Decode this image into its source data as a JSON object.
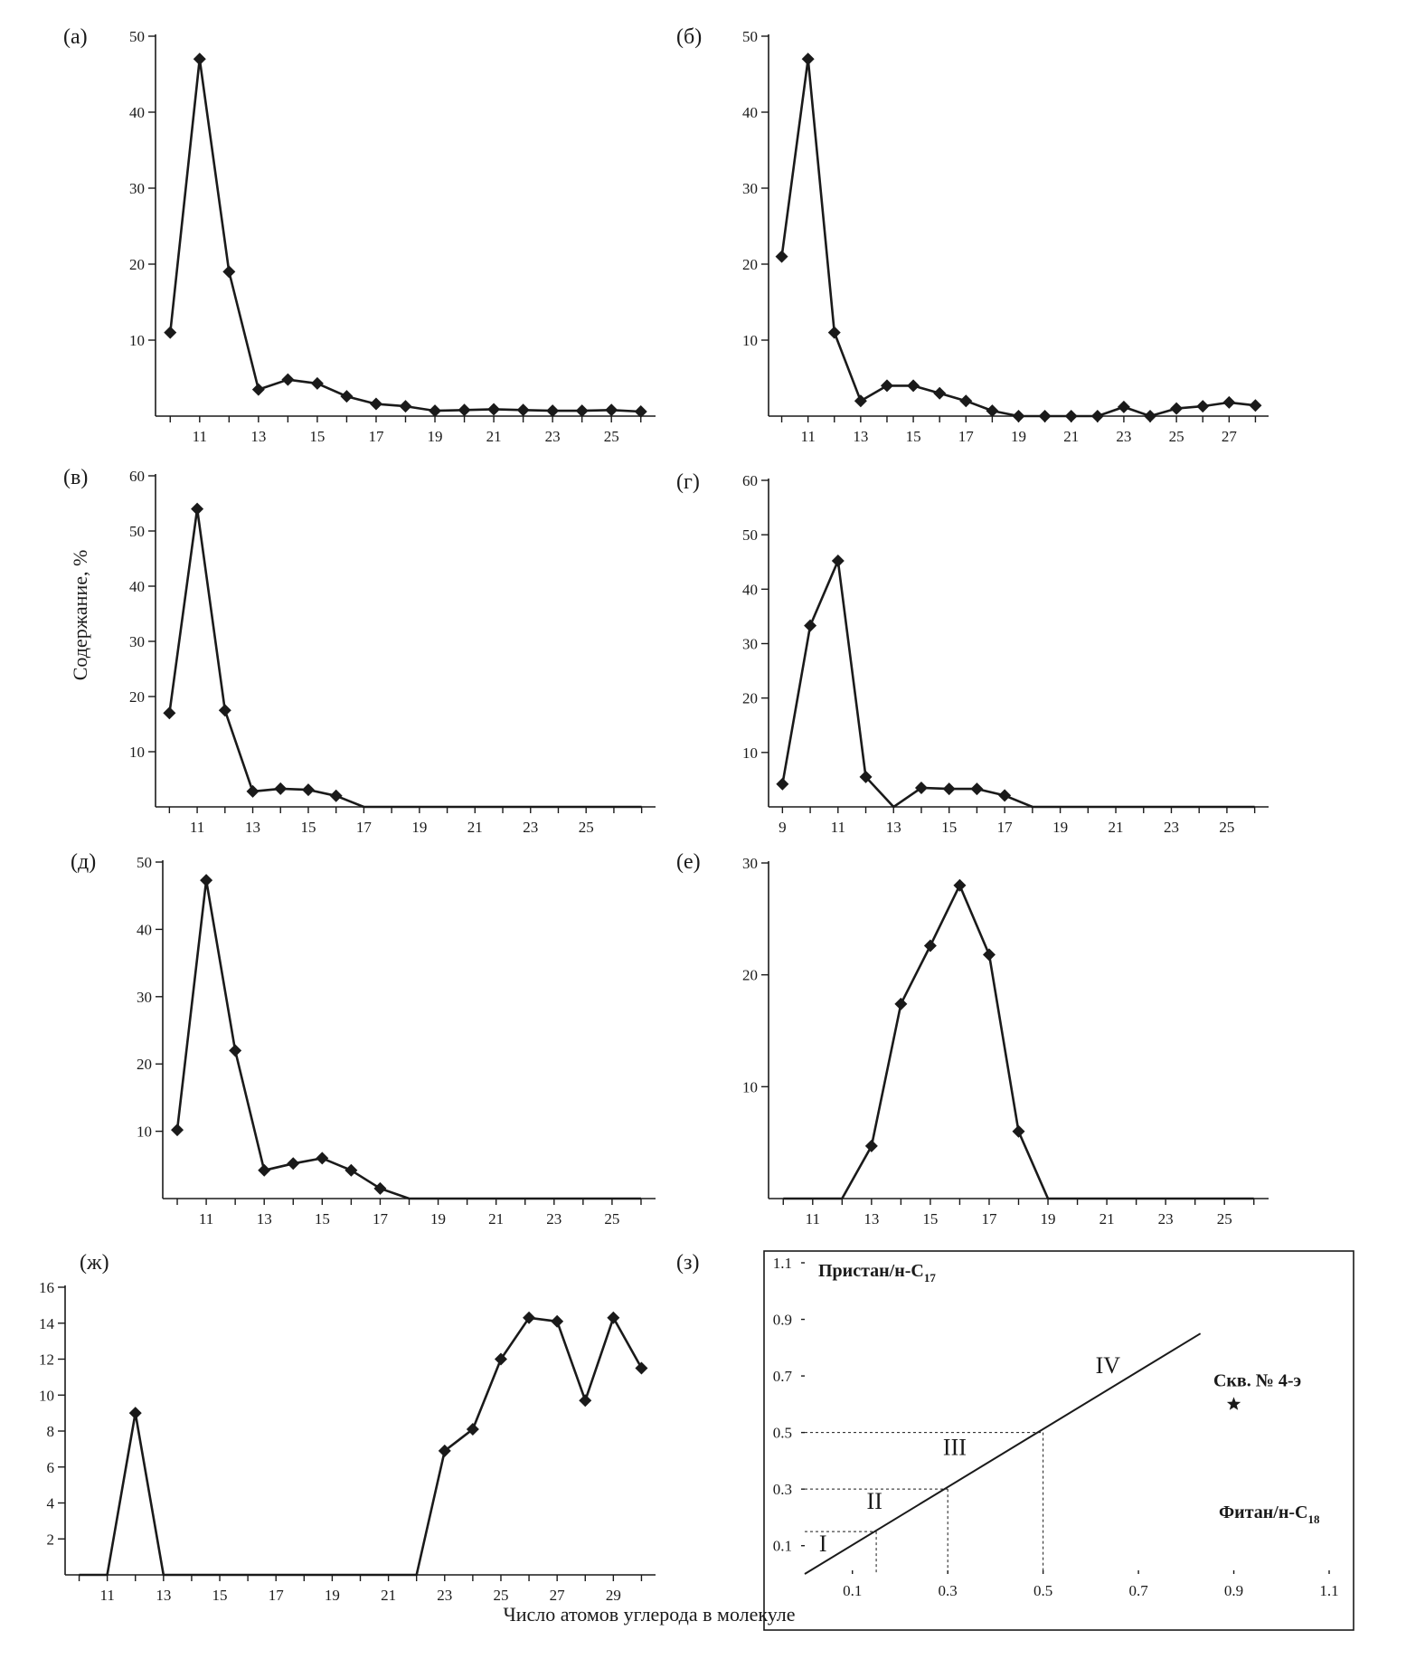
{
  "figure": {
    "ylabel": "Содержание, %",
    "xlabel": "Число атомов углерода в молекуле"
  },
  "chart_data": [
    {
      "id": "a",
      "panel_label": "(а)",
      "type": "line",
      "ylim": [
        0,
        50
      ],
      "yticks": [
        10,
        20,
        30,
        40,
        50
      ],
      "xlim": [
        9.5,
        26.5
      ],
      "xticks": [
        10,
        11,
        12,
        13,
        14,
        15,
        16,
        17,
        18,
        19,
        20,
        21,
        22,
        23,
        24,
        25,
        26
      ],
      "xtick_labels": [
        11,
        13,
        15,
        17,
        19,
        21,
        23,
        25
      ],
      "x": [
        10,
        11,
        12,
        13,
        14,
        15,
        16,
        17,
        18,
        19,
        20,
        21,
        22,
        23,
        24,
        25,
        26
      ],
      "y": [
        11,
        47,
        19,
        3.5,
        4.8,
        4.3,
        2.6,
        1.6,
        1.3,
        0.7,
        0.8,
        0.9,
        0.8,
        0.7,
        0.7,
        0.8,
        0.6
      ]
    },
    {
      "id": "b",
      "panel_label": "(б)",
      "type": "line",
      "ylim": [
        0,
        50
      ],
      "yticks": [
        10,
        20,
        30,
        40,
        50
      ],
      "xlim": [
        9.5,
        28.5
      ],
      "xticks": [
        10,
        11,
        12,
        13,
        14,
        15,
        16,
        17,
        18,
        19,
        20,
        21,
        22,
        23,
        24,
        25,
        26,
        27,
        28
      ],
      "xtick_labels": [
        11,
        13,
        15,
        17,
        19,
        21,
        23,
        25,
        27
      ],
      "x": [
        10,
        11,
        12,
        13,
        14,
        15,
        16,
        17,
        18,
        19,
        20,
        21,
        22,
        23,
        24,
        25,
        26,
        27,
        28
      ],
      "y": [
        21,
        47,
        11,
        2,
        4,
        4,
        3,
        2,
        0.7,
        0,
        0,
        0,
        0,
        1.2,
        0,
        1,
        1.3,
        1.8,
        1.4
      ]
    },
    {
      "id": "v",
      "panel_label": "(в)",
      "type": "line",
      "ylim": [
        0,
        60
      ],
      "yticks": [
        10,
        20,
        30,
        40,
        50,
        60
      ],
      "xlim": [
        9.5,
        27.5
      ],
      "xticks": [
        10,
        11,
        12,
        13,
        14,
        15,
        16,
        17,
        18,
        19,
        20,
        21,
        22,
        23,
        24,
        25,
        26,
        27
      ],
      "xtick_labels": [
        11,
        13,
        15,
        17,
        19,
        21,
        23,
        25
      ],
      "x": [
        10,
        11,
        12,
        13,
        14,
        15,
        16,
        17,
        18,
        19,
        20,
        21,
        22,
        23,
        24,
        25,
        26,
        27
      ],
      "y": [
        17,
        54,
        17.5,
        2.8,
        3.3,
        3.1,
        2,
        0,
        0,
        0,
        0,
        0,
        0,
        0,
        0,
        0,
        0,
        0
      ],
      "markers_until_index": 6
    },
    {
      "id": "g",
      "panel_label": "(г)",
      "type": "line",
      "ylim": [
        0,
        60
      ],
      "yticks": [
        10,
        20,
        30,
        40,
        50,
        60
      ],
      "xlim": [
        8.5,
        26.5
      ],
      "xticks": [
        9,
        10,
        11,
        12,
        13,
        14,
        15,
        16,
        17,
        18,
        19,
        20,
        21,
        22,
        23,
        24,
        25,
        26
      ],
      "xtick_labels": [
        9,
        11,
        13,
        15,
        17,
        19,
        21,
        23,
        25
      ],
      "x": [
        9,
        10,
        11,
        12,
        13,
        14,
        15,
        16,
        17,
        18,
        19,
        20,
        21,
        22,
        23,
        24,
        25,
        26
      ],
      "y": [
        4.2,
        33.3,
        45.2,
        5.5,
        0,
        3.5,
        3.3,
        3.3,
        2.1,
        0,
        0,
        0,
        0,
        0,
        0,
        0,
        0,
        0
      ],
      "markers_at_indices": [
        0,
        1,
        2,
        3,
        5,
        6,
        7,
        8
      ]
    },
    {
      "id": "d",
      "panel_label": "(д)",
      "type": "line",
      "ylim": [
        0,
        50
      ],
      "yticks": [
        10,
        20,
        30,
        40,
        50
      ],
      "xlim": [
        9.5,
        26.5
      ],
      "xticks": [
        10,
        11,
        12,
        13,
        14,
        15,
        16,
        17,
        18,
        19,
        20,
        21,
        22,
        23,
        24,
        25,
        26
      ],
      "xtick_labels": [
        11,
        13,
        15,
        17,
        19,
        21,
        23,
        25
      ],
      "x": [
        10,
        11,
        12,
        13,
        14,
        15,
        16,
        17,
        18,
        19,
        20,
        21,
        22,
        23,
        24,
        25,
        26
      ],
      "y": [
        10.2,
        47.3,
        22,
        4.2,
        5.2,
        6,
        4.2,
        1.5,
        0,
        0,
        0,
        0,
        0,
        0,
        0,
        0,
        0
      ],
      "markers_until_index": 7
    },
    {
      "id": "e",
      "panel_label": "(е)",
      "type": "line",
      "ylim": [
        0,
        30
      ],
      "yticks": [
        10,
        20,
        30
      ],
      "xlim": [
        9.5,
        26.5
      ],
      "xticks": [
        10,
        11,
        12,
        13,
        14,
        15,
        16,
        17,
        18,
        19,
        20,
        21,
        22,
        23,
        24,
        25,
        26
      ],
      "xtick_labels": [
        11,
        13,
        15,
        17,
        19,
        21,
        23,
        25
      ],
      "x": [
        10,
        11,
        12,
        13,
        14,
        15,
        16,
        17,
        18,
        19,
        20,
        21,
        22,
        23,
        24,
        25,
        26
      ],
      "y": [
        0,
        0,
        0,
        4.7,
        17.4,
        22.6,
        28,
        21.8,
        6,
        0,
        0,
        0,
        0,
        0,
        0,
        0,
        0
      ],
      "markers_at_indices": [
        3,
        4,
        5,
        6,
        7,
        8
      ]
    },
    {
      "id": "zh",
      "panel_label": "(ж)",
      "type": "line",
      "ylim": [
        0,
        16
      ],
      "yticks": [
        2,
        4,
        6,
        8,
        10,
        12,
        14,
        16
      ],
      "xlim": [
        9.5,
        30.5
      ],
      "xticks": [
        10,
        11,
        12,
        13,
        14,
        15,
        16,
        17,
        18,
        19,
        20,
        21,
        22,
        23,
        24,
        25,
        26,
        27,
        28,
        29,
        30
      ],
      "xtick_labels": [
        11,
        13,
        15,
        17,
        19,
        21,
        23,
        25,
        27,
        29
      ],
      "x": [
        10,
        11,
        12,
        13,
        14,
        15,
        16,
        17,
        18,
        19,
        20,
        21,
        22,
        23,
        24,
        25,
        26,
        27,
        28,
        29,
        30
      ],
      "y": [
        0,
        0,
        9,
        0,
        0,
        0,
        0,
        0,
        0,
        0,
        0,
        0,
        0,
        6.9,
        8.1,
        12,
        14.3,
        14.1,
        9.7,
        14.3,
        11.5
      ],
      "markers_at_indices": [
        2,
        13,
        14,
        15,
        16,
        17,
        18,
        19,
        20
      ]
    },
    {
      "id": "z",
      "panel_label": "(з)",
      "type": "line",
      "ylabel": "Пристан/н-C",
      "ylabel_subscript": "17",
      "xlabel": "Фитан/н-C",
      "xlabel_subscript": "18",
      "xlim": [
        0,
        1.1
      ],
      "ylim": [
        0,
        1.1
      ],
      "xtick_labels": [
        0.1,
        0.3,
        0.5,
        0.7,
        0.9,
        1.1
      ],
      "ytick_labels": [
        0.1,
        0.3,
        0.5,
        0.7,
        0.9,
        1.1
      ],
      "reference_line": {
        "x": [
          0,
          0.83
        ],
        "y": [
          0,
          0.85
        ]
      },
      "guides": [
        0.15,
        0.3,
        0.5
      ],
      "zones": [
        {
          "label": "I",
          "x": 0.03,
          "y": 0.08
        },
        {
          "label": "II",
          "x": 0.13,
          "y": 0.23
        },
        {
          "label": "III",
          "x": 0.29,
          "y": 0.42
        },
        {
          "label": "IV",
          "x": 0.61,
          "y": 0.71
        }
      ],
      "point": {
        "x": 0.9,
        "y": 0.6,
        "label": "Скв. № 4-э"
      }
    }
  ]
}
